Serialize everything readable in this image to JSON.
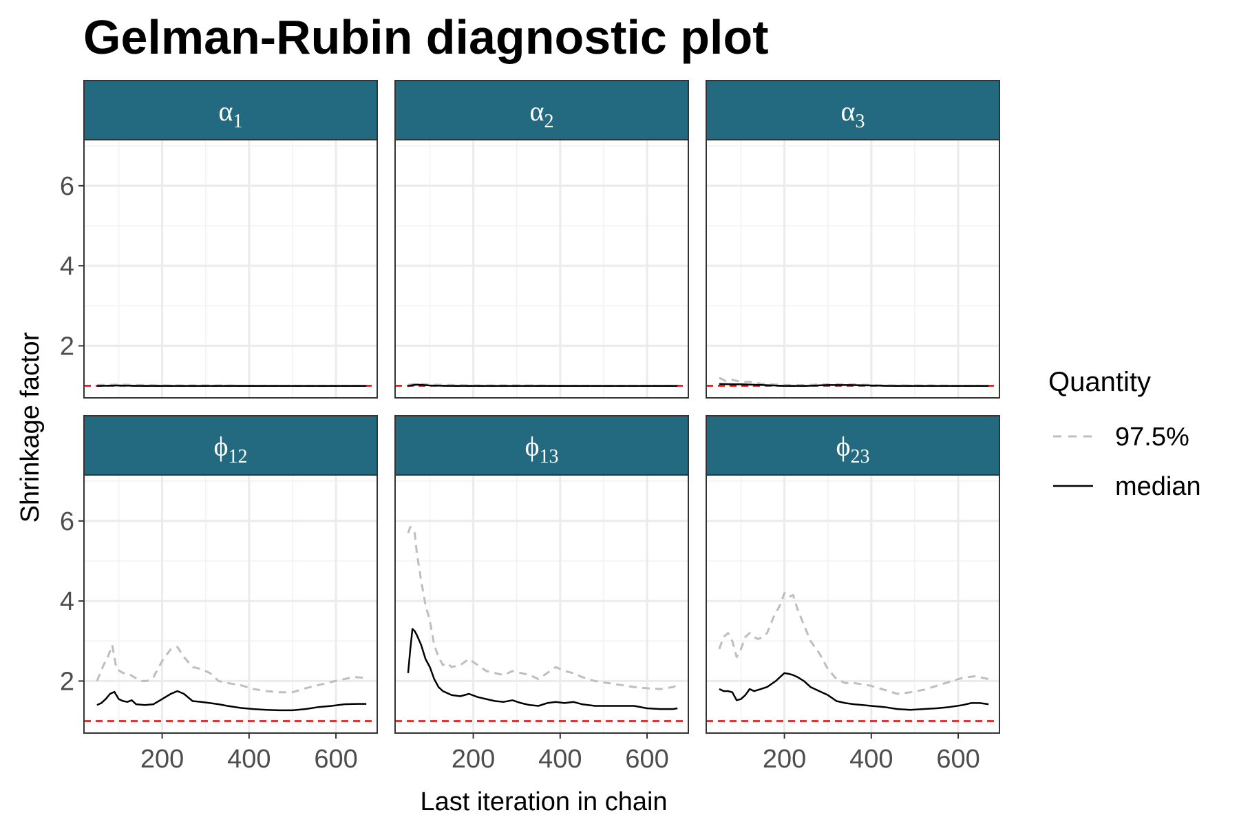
{
  "chart_data": {
    "type": "line",
    "title": "Gelman-Rubin diagnostic plot",
    "xlabel": "Last iteration in chain",
    "ylabel": "Shrinkage factor",
    "xticks": [
      200,
      400,
      600
    ],
    "yticks": [
      2,
      4,
      6
    ],
    "xlim": [
      20,
      695
    ],
    "ylim": [
      0.7,
      7.15
    ],
    "reference_line": {
      "y": 1,
      "color": "#ee0000",
      "style": "dashed"
    },
    "grid": true,
    "legend": {
      "title": "Quantity",
      "position": "right",
      "entries": [
        {
          "label": "97.5%",
          "color": "#bebebe",
          "style": "dashed"
        },
        {
          "label": "median",
          "color": "#000000",
          "style": "solid"
        }
      ]
    },
    "strip_color": "#236a80",
    "panels": [
      {
        "base": "α",
        "sub": "1",
        "series": [
          {
            "name": "97.5%",
            "x": [
              50,
              100,
              150,
              200,
              250,
              300,
              350,
              400,
              450,
              500,
              550,
              600,
              650,
              670
            ],
            "y": [
              1.02,
              1.03,
              1.02,
              1.01,
              1.01,
              1.01,
              1.01,
              1.0,
              1.0,
              1.0,
              1.0,
              1.0,
              1.0,
              1.0
            ]
          },
          {
            "name": "median",
            "x": [
              50,
              100,
              150,
              200,
              250,
              300,
              350,
              400,
              450,
              500,
              550,
              600,
              650,
              670
            ],
            "y": [
              1.0,
              1.01,
              1.0,
              1.0,
              1.0,
              1.0,
              1.0,
              1.0,
              1.0,
              1.0,
              1.0,
              1.0,
              1.0,
              1.0
            ]
          }
        ]
      },
      {
        "base": "α",
        "sub": "2",
        "series": [
          {
            "name": "97.5%",
            "x": [
              50,
              70,
              100,
              150,
              200,
              250,
              300,
              350,
              400,
              450,
              500,
              550,
              600,
              650,
              670
            ],
            "y": [
              1.02,
              1.06,
              1.03,
              1.02,
              1.01,
              1.01,
              1.01,
              1.01,
              1.0,
              1.0,
              1.0,
              1.0,
              1.0,
              1.0,
              1.0
            ]
          },
          {
            "name": "median",
            "x": [
              50,
              70,
              100,
              150,
              200,
              250,
              300,
              350,
              400,
              450,
              500,
              550,
              600,
              650,
              670
            ],
            "y": [
              1.0,
              1.03,
              1.01,
              1.0,
              1.0,
              1.0,
              1.0,
              1.0,
              1.0,
              1.0,
              1.0,
              1.0,
              1.0,
              1.0,
              1.0
            ]
          }
        ]
      },
      {
        "base": "α",
        "sub": "3",
        "series": [
          {
            "name": "97.5%",
            "x": [
              50,
              65,
              80,
              100,
              120,
              150,
              200,
              250,
              300,
              350,
              400,
              450,
              500,
              550,
              600,
              650,
              670
            ],
            "y": [
              1.2,
              1.12,
              1.15,
              1.1,
              1.1,
              1.05,
              1.02,
              1.02,
              1.04,
              1.04,
              1.02,
              1.01,
              1.01,
              1.01,
              1.0,
              1.0,
              1.0
            ]
          },
          {
            "name": "median",
            "x": [
              50,
              80,
              100,
              150,
              200,
              250,
              300,
              350,
              400,
              450,
              500,
              550,
              600,
              650,
              670
            ],
            "y": [
              1.05,
              1.04,
              1.04,
              1.02,
              1.0,
              1.0,
              1.02,
              1.02,
              1.01,
              1.0,
              1.0,
              1.0,
              1.0,
              1.0,
              1.0
            ]
          }
        ]
      },
      {
        "base": "ϕ",
        "sub": "12",
        "series": [
          {
            "name": "97.5%",
            "x": [
              50,
              65,
              75,
              85,
              95,
              110,
              120,
              135,
              150,
              165,
              180,
              200,
              220,
              235,
              250,
              270,
              290,
              310,
              330,
              350,
              380,
              410,
              440,
              470,
              500,
              530,
              560,
              590,
              620,
              640,
              670
            ],
            "y": [
              2.0,
              2.4,
              2.6,
              2.9,
              2.3,
              2.2,
              2.2,
              2.1,
              2.0,
              2.0,
              2.1,
              2.5,
              2.8,
              2.85,
              2.6,
              2.35,
              2.3,
              2.2,
              2.0,
              1.95,
              1.9,
              1.8,
              1.75,
              1.72,
              1.72,
              1.82,
              1.9,
              1.98,
              2.05,
              2.1,
              2.08
            ]
          },
          {
            "name": "median",
            "x": [
              50,
              60,
              70,
              80,
              90,
              100,
              110,
              120,
              130,
              140,
              160,
              180,
              200,
              220,
              235,
              250,
              270,
              290,
              310,
              330,
              350,
              380,
              410,
              440,
              470,
              500,
              530,
              560,
              590,
              620,
              650,
              670
            ],
            "y": [
              1.4,
              1.45,
              1.55,
              1.68,
              1.73,
              1.55,
              1.5,
              1.48,
              1.52,
              1.42,
              1.4,
              1.42,
              1.55,
              1.68,
              1.75,
              1.68,
              1.5,
              1.48,
              1.45,
              1.42,
              1.38,
              1.33,
              1.3,
              1.28,
              1.27,
              1.27,
              1.3,
              1.35,
              1.38,
              1.42,
              1.43,
              1.43
            ]
          }
        ]
      },
      {
        "base": "ϕ",
        "sub": "13",
        "series": [
          {
            "name": "97.5%",
            "x": [
              50,
              55,
              60,
              65,
              70,
              80,
              90,
              100,
              110,
              120,
              130,
              140,
              150,
              170,
              190,
              210,
              230,
              250,
              270,
              290,
              310,
              330,
              350,
              370,
              390,
              410,
              430,
              450,
              480,
              510,
              540,
              570,
              600,
              630,
              660,
              670
            ],
            "y": [
              5.7,
              5.85,
              5.8,
              5.7,
              5.2,
              4.5,
              3.9,
              3.5,
              2.9,
              2.6,
              2.4,
              2.45,
              2.35,
              2.4,
              2.55,
              2.4,
              2.25,
              2.2,
              2.15,
              2.25,
              2.2,
              2.15,
              2.05,
              2.2,
              2.35,
              2.25,
              2.2,
              2.1,
              2.0,
              1.95,
              1.9,
              1.85,
              1.82,
              1.8,
              1.85,
              1.9
            ]
          },
          {
            "name": "median",
            "x": [
              50,
              55,
              60,
              65,
              70,
              80,
              90,
              100,
              110,
              120,
              130,
              140,
              150,
              170,
              190,
              210,
              230,
              250,
              270,
              290,
              310,
              330,
              350,
              370,
              390,
              410,
              430,
              450,
              480,
              510,
              540,
              570,
              600,
              630,
              660,
              670
            ],
            "y": [
              2.2,
              2.8,
              3.3,
              3.25,
              3.15,
              2.9,
              2.55,
              2.35,
              2.05,
              1.85,
              1.75,
              1.7,
              1.65,
              1.62,
              1.68,
              1.6,
              1.55,
              1.5,
              1.48,
              1.52,
              1.45,
              1.4,
              1.38,
              1.45,
              1.48,
              1.45,
              1.48,
              1.42,
              1.38,
              1.38,
              1.38,
              1.38,
              1.32,
              1.3,
              1.3,
              1.32
            ]
          }
        ]
      },
      {
        "base": "ϕ",
        "sub": "23",
        "series": [
          {
            "name": "97.5%",
            "x": [
              50,
              60,
              70,
              80,
              90,
              100,
              110,
              120,
              130,
              140,
              150,
              160,
              175,
              190,
              200,
              210,
              220,
              230,
              245,
              260,
              280,
              300,
              320,
              340,
              360,
              380,
              400,
              430,
              460,
              490,
              520,
              550,
              580,
              610,
              640,
              670
            ],
            "y": [
              2.8,
              3.1,
              3.2,
              3.0,
              2.6,
              2.8,
              3.1,
              3.2,
              3.1,
              3.05,
              3.1,
              3.2,
              3.6,
              3.9,
              4.2,
              4.1,
              4.15,
              3.8,
              3.4,
              3.0,
              2.7,
              2.3,
              2.05,
              1.95,
              1.95,
              1.92,
              1.88,
              1.78,
              1.68,
              1.72,
              1.78,
              1.88,
              1.98,
              2.08,
              2.12,
              2.05
            ]
          },
          {
            "name": "median",
            "x": [
              50,
              60,
              70,
              80,
              90,
              100,
              110,
              120,
              130,
              140,
              160,
              180,
              190,
              200,
              210,
              220,
              230,
              245,
              260,
              280,
              300,
              320,
              340,
              360,
              380,
              400,
              430,
              460,
              490,
              520,
              550,
              580,
              610,
              630,
              650,
              670
            ],
            "y": [
              1.8,
              1.75,
              1.75,
              1.72,
              1.52,
              1.55,
              1.65,
              1.8,
              1.75,
              1.78,
              1.85,
              2.0,
              2.1,
              2.2,
              2.18,
              2.15,
              2.1,
              2.0,
              1.85,
              1.75,
              1.65,
              1.5,
              1.45,
              1.42,
              1.4,
              1.38,
              1.35,
              1.3,
              1.28,
              1.3,
              1.32,
              1.35,
              1.4,
              1.45,
              1.45,
              1.42
            ]
          }
        ]
      }
    ]
  }
}
